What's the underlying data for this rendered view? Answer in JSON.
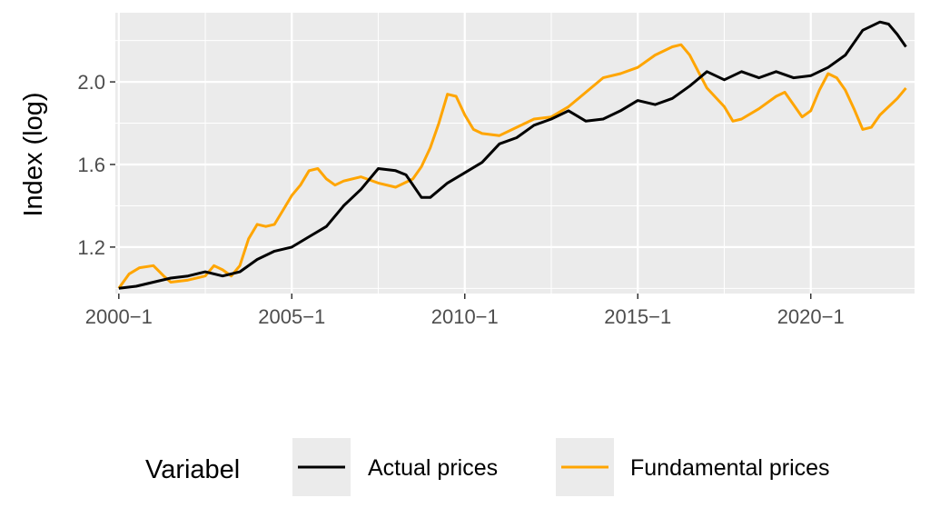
{
  "chart_data": {
    "type": "line",
    "ylabel": "Index (log)",
    "xlabel": "",
    "x_tick_labels": [
      "2000−1",
      "2005−1",
      "2010−1",
      "2015−1",
      "2020−1"
    ],
    "x_tick_values": [
      2000,
      2005,
      2010,
      2015,
      2020
    ],
    "y_tick_labels": [
      "1.2",
      "1.6",
      "2.0"
    ],
    "y_tick_values": [
      1.2,
      1.6,
      2.0
    ],
    "xlim": [
      1999.9,
      2023.0
    ],
    "ylim": [
      0.975,
      2.335
    ],
    "grid": true,
    "legend_position": "bottom",
    "legend_title": "Variabel",
    "series": [
      {
        "name": "Actual prices",
        "color": "#000000",
        "points": [
          [
            2000.0,
            1.0
          ],
          [
            2000.5,
            1.01
          ],
          [
            2001.0,
            1.03
          ],
          [
            2001.5,
            1.05
          ],
          [
            2002.0,
            1.06
          ],
          [
            2002.5,
            1.08
          ],
          [
            2003.0,
            1.06
          ],
          [
            2003.5,
            1.08
          ],
          [
            2004.0,
            1.14
          ],
          [
            2004.5,
            1.18
          ],
          [
            2005.0,
            1.2
          ],
          [
            2005.5,
            1.25
          ],
          [
            2006.0,
            1.3
          ],
          [
            2006.5,
            1.4
          ],
          [
            2007.0,
            1.48
          ],
          [
            2007.5,
            1.58
          ],
          [
            2008.0,
            1.57
          ],
          [
            2008.3,
            1.55
          ],
          [
            2008.75,
            1.44
          ],
          [
            2009.0,
            1.44
          ],
          [
            2009.5,
            1.51
          ],
          [
            2010.0,
            1.56
          ],
          [
            2010.5,
            1.61
          ],
          [
            2011.0,
            1.7
          ],
          [
            2011.5,
            1.73
          ],
          [
            2012.0,
            1.79
          ],
          [
            2012.5,
            1.82
          ],
          [
            2013.0,
            1.86
          ],
          [
            2013.5,
            1.81
          ],
          [
            2014.0,
            1.82
          ],
          [
            2014.5,
            1.86
          ],
          [
            2015.0,
            1.91
          ],
          [
            2015.5,
            1.89
          ],
          [
            2016.0,
            1.92
          ],
          [
            2016.5,
            1.98
          ],
          [
            2017.0,
            2.05
          ],
          [
            2017.5,
            2.01
          ],
          [
            2018.0,
            2.05
          ],
          [
            2018.5,
            2.02
          ],
          [
            2019.0,
            2.05
          ],
          [
            2019.5,
            2.02
          ],
          [
            2020.0,
            2.03
          ],
          [
            2020.5,
            2.07
          ],
          [
            2021.0,
            2.13
          ],
          [
            2021.5,
            2.25
          ],
          [
            2022.0,
            2.29
          ],
          [
            2022.25,
            2.28
          ],
          [
            2022.5,
            2.23
          ],
          [
            2022.75,
            2.17
          ]
        ]
      },
      {
        "name": "Fundamental prices",
        "color": "#FFA500",
        "points": [
          [
            2000.0,
            1.0
          ],
          [
            2000.3,
            1.07
          ],
          [
            2000.6,
            1.1
          ],
          [
            2001.0,
            1.11
          ],
          [
            2001.3,
            1.06
          ],
          [
            2001.5,
            1.03
          ],
          [
            2002.0,
            1.04
          ],
          [
            2002.5,
            1.06
          ],
          [
            2002.75,
            1.11
          ],
          [
            2003.0,
            1.09
          ],
          [
            2003.25,
            1.06
          ],
          [
            2003.5,
            1.11
          ],
          [
            2003.75,
            1.24
          ],
          [
            2004.0,
            1.31
          ],
          [
            2004.25,
            1.3
          ],
          [
            2004.5,
            1.31
          ],
          [
            2004.75,
            1.38
          ],
          [
            2005.0,
            1.45
          ],
          [
            2005.25,
            1.5
          ],
          [
            2005.5,
            1.57
          ],
          [
            2005.75,
            1.58
          ],
          [
            2006.0,
            1.53
          ],
          [
            2006.25,
            1.5
          ],
          [
            2006.5,
            1.52
          ],
          [
            2007.0,
            1.54
          ],
          [
            2007.5,
            1.51
          ],
          [
            2008.0,
            1.49
          ],
          [
            2008.5,
            1.53
          ],
          [
            2008.75,
            1.59
          ],
          [
            2009.0,
            1.68
          ],
          [
            2009.25,
            1.8
          ],
          [
            2009.5,
            1.94
          ],
          [
            2009.75,
            1.93
          ],
          [
            2010.0,
            1.84
          ],
          [
            2010.25,
            1.77
          ],
          [
            2010.5,
            1.75
          ],
          [
            2011.0,
            1.74
          ],
          [
            2011.5,
            1.78
          ],
          [
            2012.0,
            1.82
          ],
          [
            2012.5,
            1.83
          ],
          [
            2013.0,
            1.88
          ],
          [
            2013.5,
            1.95
          ],
          [
            2014.0,
            2.02
          ],
          [
            2014.5,
            2.04
          ],
          [
            2015.0,
            2.07
          ],
          [
            2015.5,
            2.13
          ],
          [
            2016.0,
            2.17
          ],
          [
            2016.25,
            2.18
          ],
          [
            2016.5,
            2.13
          ],
          [
            2016.75,
            2.05
          ],
          [
            2017.0,
            1.97
          ],
          [
            2017.5,
            1.88
          ],
          [
            2017.75,
            1.81
          ],
          [
            2018.0,
            1.82
          ],
          [
            2018.5,
            1.87
          ],
          [
            2019.0,
            1.93
          ],
          [
            2019.25,
            1.95
          ],
          [
            2019.5,
            1.89
          ],
          [
            2019.75,
            1.83
          ],
          [
            2020.0,
            1.86
          ],
          [
            2020.25,
            1.96
          ],
          [
            2020.5,
            2.04
          ],
          [
            2020.75,
            2.02
          ],
          [
            2021.0,
            1.96
          ],
          [
            2021.25,
            1.87
          ],
          [
            2021.5,
            1.77
          ],
          [
            2021.75,
            1.78
          ],
          [
            2022.0,
            1.84
          ],
          [
            2022.5,
            1.92
          ],
          [
            2022.75,
            1.97
          ]
        ]
      }
    ]
  }
}
